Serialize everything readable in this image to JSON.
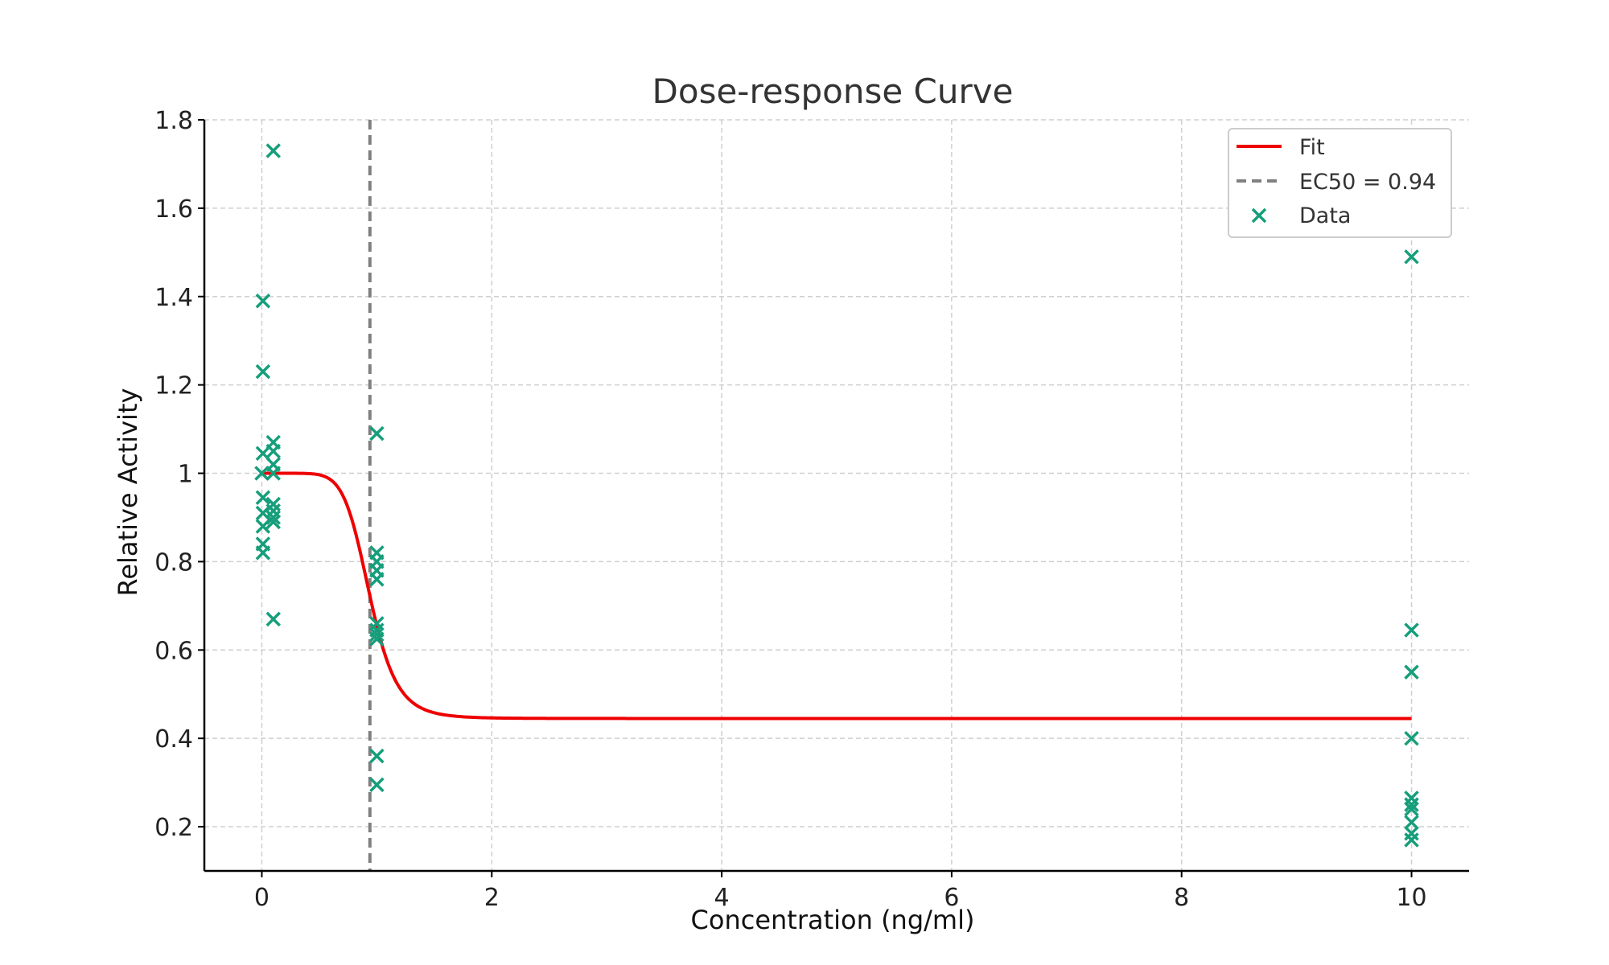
{
  "chart_data": {
    "type": "scatter",
    "title": "Dose-response Curve",
    "xlabel": "Concentration (ng/ml)",
    "ylabel": "Relative Activity",
    "xlim": [
      -0.5,
      10.5
    ],
    "ylim": [
      0.1,
      1.8
    ],
    "xticks": [
      0,
      2,
      4,
      6,
      8,
      10
    ],
    "yticks": [
      0.2,
      0.4,
      0.6,
      0.8,
      1.0,
      1.2,
      1.4,
      1.6,
      1.8
    ],
    "grid": true,
    "legend_position": "top-right",
    "colors": {
      "fit": "#ee0000",
      "ec50": "#808080",
      "data": "#169e7b"
    },
    "legend": [
      {
        "label": "Fit",
        "style": "line"
      },
      {
        "label": "EC50 = 0.94",
        "style": "dashed"
      },
      {
        "label": "Data",
        "style": "marker"
      }
    ],
    "ec50": 0.94,
    "fit_model": {
      "top": 1.0,
      "bottom": 0.445,
      "ec50": 0.94,
      "hill": 8
    },
    "data": [
      {
        "x": 0.0,
        "y": 1.0
      },
      {
        "x": 0.01,
        "y": 1.39
      },
      {
        "x": 0.01,
        "y": 1.23
      },
      {
        "x": 0.01,
        "y": 1.045
      },
      {
        "x": 0.01,
        "y": 0.945
      },
      {
        "x": 0.01,
        "y": 0.91
      },
      {
        "x": 0.01,
        "y": 0.88
      },
      {
        "x": 0.01,
        "y": 0.84
      },
      {
        "x": 0.01,
        "y": 0.82
      },
      {
        "x": 0.1,
        "y": 1.73
      },
      {
        "x": 0.1,
        "y": 1.07
      },
      {
        "x": 0.1,
        "y": 1.05
      },
      {
        "x": 0.1,
        "y": 1.02
      },
      {
        "x": 0.1,
        "y": 1.0
      },
      {
        "x": 0.1,
        "y": 0.93
      },
      {
        "x": 0.1,
        "y": 0.915
      },
      {
        "x": 0.1,
        "y": 0.9
      },
      {
        "x": 0.1,
        "y": 0.89
      },
      {
        "x": 0.1,
        "y": 0.67
      },
      {
        "x": 1.0,
        "y": 1.09
      },
      {
        "x": 1.0,
        "y": 0.82
      },
      {
        "x": 1.0,
        "y": 0.8
      },
      {
        "x": 1.0,
        "y": 0.78
      },
      {
        "x": 1.0,
        "y": 0.76
      },
      {
        "x": 1.0,
        "y": 0.66
      },
      {
        "x": 1.0,
        "y": 0.645
      },
      {
        "x": 1.0,
        "y": 0.635
      },
      {
        "x": 1.0,
        "y": 0.625
      },
      {
        "x": 1.0,
        "y": 0.36
      },
      {
        "x": 1.0,
        "y": 0.295
      },
      {
        "x": 10.0,
        "y": 1.49
      },
      {
        "x": 10.0,
        "y": 0.645
      },
      {
        "x": 10.0,
        "y": 0.55
      },
      {
        "x": 10.0,
        "y": 0.4
      },
      {
        "x": 10.0,
        "y": 0.265
      },
      {
        "x": 10.0,
        "y": 0.25
      },
      {
        "x": 10.0,
        "y": 0.24
      },
      {
        "x": 10.0,
        "y": 0.21
      },
      {
        "x": 10.0,
        "y": 0.185
      },
      {
        "x": 10.0,
        "y": 0.17
      }
    ]
  }
}
